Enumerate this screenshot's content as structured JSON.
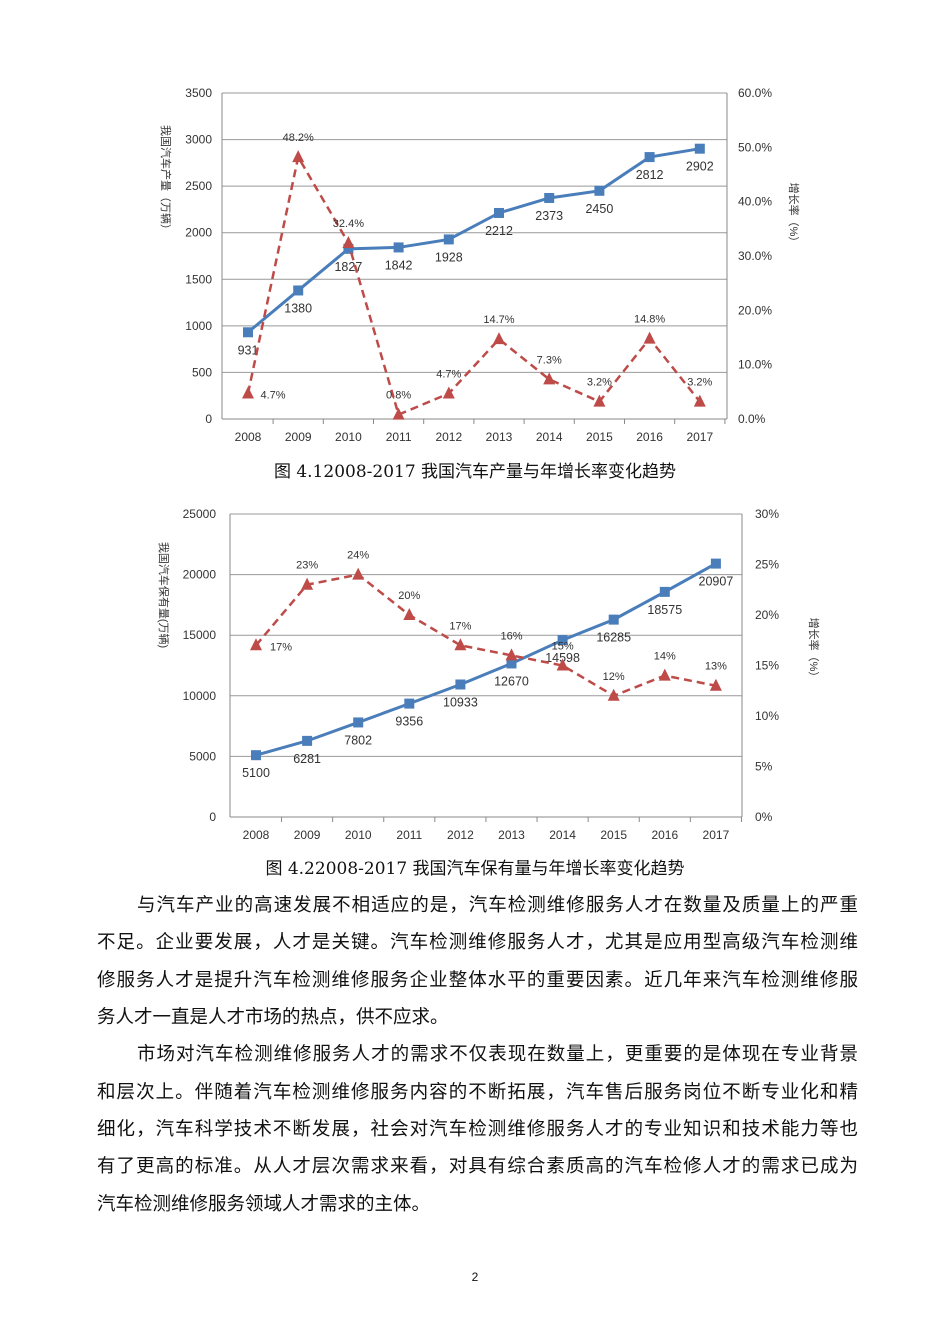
{
  "chart_data": [
    {
      "type": "line",
      "categories": [
        "2008",
        "2009",
        "2010",
        "2011",
        "2012",
        "2013",
        "2014",
        "2015",
        "2016",
        "2017"
      ],
      "ylabel": "我国汽车产量（万辆）",
      "y2label": "增长率（%）",
      "ylim": [
        0,
        3500
      ],
      "yticks": [
        "0",
        "500",
        "1000",
        "1500",
        "2000",
        "2500",
        "3000",
        "3500"
      ],
      "y2lim": [
        0,
        60
      ],
      "y2ticks": [
        "0.0%",
        "10.0%",
        "20.0%",
        "30.0%",
        "40.0%",
        "50.0%",
        "60.0%"
      ],
      "grid": true,
      "series": [
        {
          "values": [
            931,
            1380,
            1827,
            1842,
            1928,
            2212,
            2373,
            2450,
            2812,
            2902
          ],
          "labels": [
            "931",
            "1380",
            "1827",
            "1842",
            "1928",
            "2212",
            "2373",
            "2450",
            "2812",
            "2902"
          ],
          "color": "#4a7ebb",
          "style": "solid",
          "marker": "square",
          "axis": "left"
        },
        {
          "values": [
            4.7,
            48.2,
            32.4,
            0.8,
            4.7,
            14.7,
            7.3,
            3.2,
            14.8,
            3.2
          ],
          "labels": [
            "4.7%",
            "48.2%",
            "32.4%",
            "0.8%",
            "4.7%",
            "14.7%",
            "7.3%",
            "3.2%",
            "14.8%",
            "3.2%"
          ],
          "color": "#be4b48",
          "style": "dashed",
          "marker": "triangle",
          "axis": "right"
        }
      ]
    },
    {
      "type": "line",
      "categories": [
        "2008",
        "2009",
        "2010",
        "2011",
        "2012",
        "2013",
        "2014",
        "2015",
        "2016",
        "2017"
      ],
      "ylabel": "我国汽车保有量(万辆)",
      "y2label": "增长率（%）",
      "ylim": [
        0,
        25000
      ],
      "yticks": [
        "0",
        "5000",
        "10000",
        "15000",
        "20000",
        "25000"
      ],
      "y2lim": [
        0,
        30
      ],
      "y2ticks": [
        "0%",
        "5%",
        "10%",
        "15%",
        "20%",
        "25%",
        "30%"
      ],
      "grid": true,
      "series": [
        {
          "values": [
            5100,
            6281,
            7802,
            9356,
            10933,
            12670,
            14598,
            16285,
            18575,
            20907
          ],
          "labels": [
            "5100",
            "6281",
            "7802",
            "9356",
            "10933",
            "12670",
            "14598",
            "16285",
            "18575",
            "20907"
          ],
          "color": "#4a7ebb",
          "style": "solid",
          "marker": "square",
          "axis": "left"
        },
        {
          "values": [
            17,
            23,
            24,
            20,
            17,
            16,
            15,
            12,
            14,
            13
          ],
          "labels": [
            "17%",
            "23%",
            "24%",
            "20%",
            "17%",
            "16%",
            "15%",
            "12%",
            "14%",
            "13%"
          ],
          "color": "#be4b48",
          "style": "dashed",
          "marker": "triangle",
          "axis": "right"
        }
      ]
    }
  ],
  "captions": [
    "图 4.12008-2017 我国汽车产量与年增长率变化趋势",
    "图 4.22008-2017 我国汽车保有量与年增长率变化趋势"
  ],
  "body": [
    "与汽车产业的高速发展不相适应的是，汽车检测维修服务人才在数量及质量上的严重",
    "不足。企业要发展，人才是关键。汽车检测维修服务人才，尤其是应用型高级汽车检测维",
    "修服务人才是提升汽车检测维修服务企业整体水平的重要因素。近几年来汽车检测维修服",
    "务人才一直是人才市场的热点，供不应求。",
    "市场对汽车检测维修服务人才的需求不仅表现在数量上，更重要的是体现在专业背景",
    "和层次上。伴随着汽车检测维修服务内容的不断拓展，汽车售后服务岗位不断专业化和精",
    "细化，汽车科学技术不断发展，社会对汽车检测维修服务人才的专业知识和技术能力等也",
    "有了更高的标准。从人才层次需求来看，对具有综合素质高的汽车检修人才的需求已成为",
    "汽车检测维修服务领域人才需求的主体。"
  ],
  "page_number": "2"
}
